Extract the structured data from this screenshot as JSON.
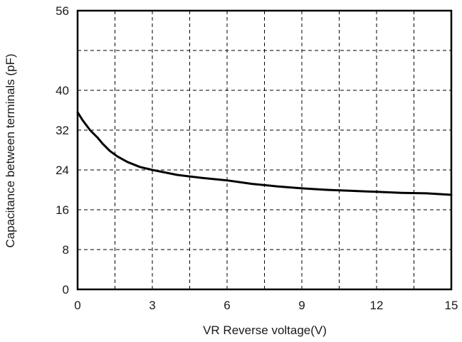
{
  "chart_data": {
    "type": "line",
    "title": "",
    "xlabel": "VR Reverse voltage(V)",
    "ylabel": "Capacitance between terminals  (pF)",
    "xlim": [
      0,
      15
    ],
    "ylim": [
      0,
      56
    ],
    "xticks": [
      0,
      3,
      6,
      9,
      12,
      15
    ],
    "yticks": [
      0,
      8,
      16,
      24,
      32,
      40,
      56
    ],
    "grid": true,
    "grid_style": "dashed",
    "x_gridlines": [
      1.5,
      3,
      4.5,
      6,
      7.5,
      9,
      10.5,
      12,
      13.5
    ],
    "y_gridlines": [
      8,
      16,
      24,
      32,
      40,
      48
    ],
    "legend": "none",
    "colors": {
      "line": "#000000",
      "grid": "#000000",
      "frame": "#000000"
    },
    "series": [
      {
        "x": [
          0,
          0.2,
          0.5,
          0.8,
          1.0,
          1.3,
          1.6,
          2.0,
          2.5,
          3.0,
          3.5,
          4.0,
          5.0,
          6.0,
          7.0,
          8.0,
          9.0,
          10.0,
          11.0,
          12.0,
          13.0,
          14.0,
          15.0
        ],
        "y": [
          35.6,
          34.0,
          32.0,
          30.5,
          29.3,
          27.8,
          26.7,
          25.6,
          24.6,
          24.0,
          23.5,
          23.0,
          22.4,
          21.9,
          21.2,
          20.7,
          20.3,
          20.0,
          19.8,
          19.6,
          19.4,
          19.3,
          19.0
        ]
      }
    ]
  }
}
